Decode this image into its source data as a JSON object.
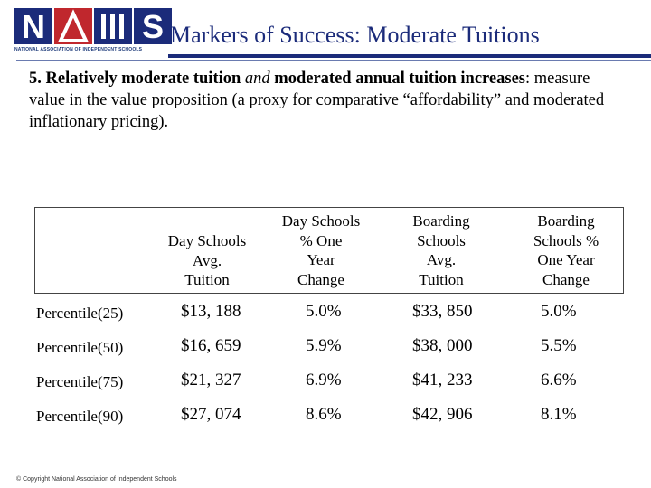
{
  "header": {
    "logo_name": "NAIS",
    "logo_subtext": "NATIONAL ASSOCIATION OF INDEPENDENT SCHOOLS",
    "title": "Markers of Success: Moderate Tuitions",
    "brand_color": "#1b2b7a"
  },
  "intro": {
    "lead_bold_1": "5. Relatively moderate tuition ",
    "lead_italic": "and",
    "lead_bold_2": " moderated annual tuition increases",
    "rest": ": measure value in the value proposition (a proxy for comparative “affordability” and moderated inflationary pricing)."
  },
  "table": {
    "headers": [
      [
        "Day Schools",
        "Avg.",
        "Tuition"
      ],
      [
        "Day Schools",
        "% One",
        "Year",
        "Change"
      ],
      [
        "Boarding",
        "Schools",
        "Avg.",
        "Tuition"
      ],
      [
        "Boarding",
        "Schools %",
        "One Year",
        "Change"
      ]
    ],
    "rows": [
      {
        "label": "Percentile(25)",
        "values": [
          "$13, 188",
          "5.0%",
          "$33, 850",
          "5.0%"
        ]
      },
      {
        "label": "Percentile(50)",
        "values": [
          "$16, 659",
          "5.9%",
          "$38, 000",
          "5.5%"
        ]
      },
      {
        "label": "Percentile(75)",
        "values": [
          "$21, 327",
          "6.9%",
          "$41, 233",
          "6.6%"
        ]
      },
      {
        "label": "Percentile(90)",
        "values": [
          "$27, 074",
          "8.6%",
          "$42, 906",
          "8.1%"
        ]
      }
    ]
  },
  "footer": {
    "copyright": "© Copyright National Association of Independent Schools"
  }
}
